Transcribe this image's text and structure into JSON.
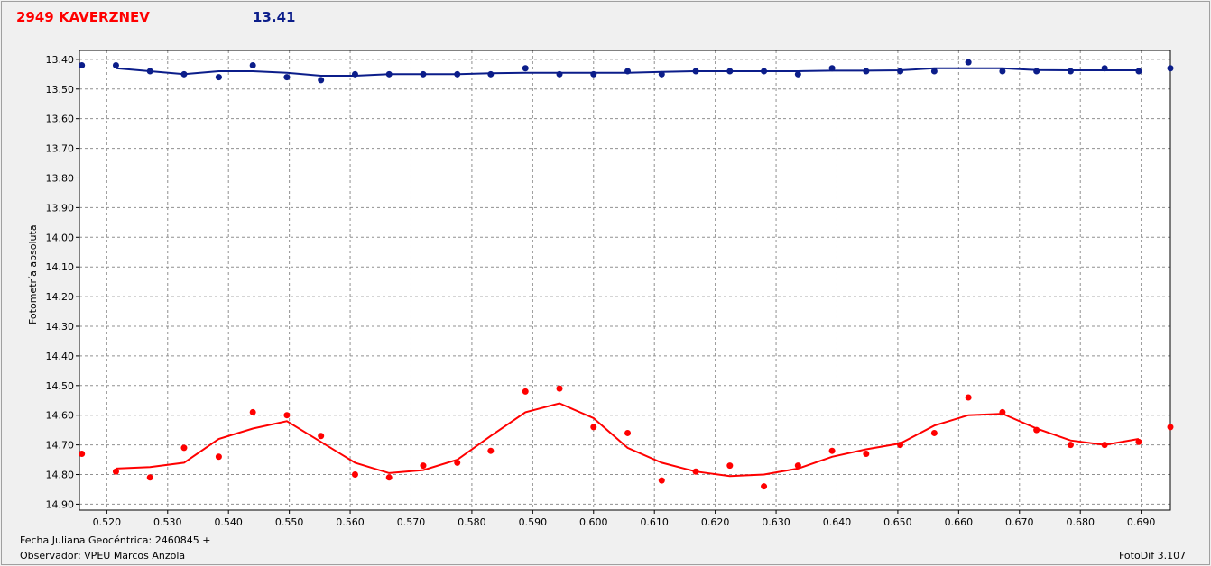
{
  "header": {
    "object_name": "2949 KAVERZNEV",
    "magnitude": "13.41"
  },
  "footer": {
    "fecha": "Fecha Juliana Geocéntrica: 2460845 +",
    "observer": "Observador: VPEU Marcos Anzola",
    "version": "FotoDif 3.107"
  },
  "colors": {
    "series_blue": "#0b1d8a",
    "series_red": "#ff0000",
    "title_red": "#ff0000",
    "title_blue": "#0b1d8a"
  },
  "chart_data": {
    "type": "scatter",
    "ylabel": "Fotometría absoluta",
    "xlabel": "Fecha Juliana Geocéntrica: 2460845 +",
    "xlim": [
      0.5155,
      0.6948
    ],
    "ylim": [
      13.37,
      14.92
    ],
    "y_inverted": true,
    "grid": true,
    "x_ticks": [
      "0.520",
      "0.530",
      "0.540",
      "0.550",
      "0.560",
      "0.570",
      "0.580",
      "0.590",
      "0.600",
      "0.610",
      "0.620",
      "0.630",
      "0.640",
      "0.650",
      "0.660",
      "0.670",
      "0.680",
      "0.690"
    ],
    "y_ticks": [
      "13.40",
      "13.50",
      "13.60",
      "13.70",
      "13.80",
      "13.90",
      "14.00",
      "14.10",
      "14.20",
      "14.30",
      "14.40",
      "14.50",
      "14.60",
      "14.70",
      "14.80",
      "14.90"
    ],
    "series": [
      {
        "color": "#0b1d8a",
        "points": [
          [
            0.5159,
            13.42
          ],
          [
            0.5215,
            13.42
          ],
          [
            0.5271,
            13.44
          ],
          [
            0.5327,
            13.45
          ],
          [
            0.5384,
            13.46
          ],
          [
            0.544,
            13.42
          ],
          [
            0.5496,
            13.46
          ],
          [
            0.5552,
            13.47
          ],
          [
            0.5608,
            13.45
          ],
          [
            0.5664,
            13.45
          ],
          [
            0.572,
            13.45
          ],
          [
            0.5776,
            13.45
          ],
          [
            0.5831,
            13.45
          ],
          [
            0.5888,
            13.43
          ],
          [
            0.5944,
            13.45
          ],
          [
            0.6,
            13.45
          ],
          [
            0.6056,
            13.44
          ],
          [
            0.6112,
            13.45
          ],
          [
            0.6168,
            13.44
          ],
          [
            0.6224,
            13.44
          ],
          [
            0.628,
            13.44
          ],
          [
            0.6336,
            13.45
          ],
          [
            0.6392,
            13.43
          ],
          [
            0.6448,
            13.44
          ],
          [
            0.6504,
            13.44
          ],
          [
            0.656,
            13.44
          ],
          [
            0.6616,
            13.41
          ],
          [
            0.6672,
            13.44
          ],
          [
            0.6728,
            13.44
          ],
          [
            0.6784,
            13.44
          ],
          [
            0.684,
            13.43
          ],
          [
            0.6896,
            13.44
          ],
          [
            0.6948,
            13.43
          ]
        ],
        "fit": [
          [
            0.5215,
            13.43
          ],
          [
            0.5271,
            13.44
          ],
          [
            0.5327,
            13.45
          ],
          [
            0.5384,
            13.44
          ],
          [
            0.544,
            13.44
          ],
          [
            0.5496,
            13.445
          ],
          [
            0.5552,
            13.455
          ],
          [
            0.5608,
            13.455
          ],
          [
            0.5664,
            13.45
          ],
          [
            0.572,
            13.45
          ],
          [
            0.5776,
            13.45
          ],
          [
            0.5831,
            13.447
          ],
          [
            0.5888,
            13.445
          ],
          [
            0.5944,
            13.445
          ],
          [
            0.6,
            13.445
          ],
          [
            0.6056,
            13.445
          ],
          [
            0.6112,
            13.442
          ],
          [
            0.6168,
            13.44
          ],
          [
            0.6224,
            13.44
          ],
          [
            0.628,
            13.44
          ],
          [
            0.6336,
            13.44
          ],
          [
            0.6392,
            13.438
          ],
          [
            0.6448,
            13.438
          ],
          [
            0.6504,
            13.437
          ],
          [
            0.656,
            13.43
          ],
          [
            0.6616,
            13.43
          ],
          [
            0.6672,
            13.43
          ],
          [
            0.6728,
            13.436
          ],
          [
            0.6784,
            13.437
          ],
          [
            0.684,
            13.437
          ],
          [
            0.6896,
            13.437
          ]
        ]
      },
      {
        "color": "#ff0000",
        "points": [
          [
            0.5159,
            14.73
          ],
          [
            0.5215,
            14.79
          ],
          [
            0.5271,
            14.81
          ],
          [
            0.5327,
            14.71
          ],
          [
            0.5384,
            14.74
          ],
          [
            0.544,
            14.59
          ],
          [
            0.5496,
            14.6
          ],
          [
            0.5552,
            14.67
          ],
          [
            0.5608,
            14.8
          ],
          [
            0.5664,
            14.81
          ],
          [
            0.572,
            14.77
          ],
          [
            0.5776,
            14.76
          ],
          [
            0.5831,
            14.72
          ],
          [
            0.5888,
            14.52
          ],
          [
            0.5944,
            14.51
          ],
          [
            0.6,
            14.64
          ],
          [
            0.6056,
            14.66
          ],
          [
            0.6112,
            14.82
          ],
          [
            0.6168,
            14.79
          ],
          [
            0.6224,
            14.77
          ],
          [
            0.628,
            14.84
          ],
          [
            0.6336,
            14.77
          ],
          [
            0.6392,
            14.72
          ],
          [
            0.6448,
            14.73
          ],
          [
            0.6504,
            14.7
          ],
          [
            0.656,
            14.66
          ],
          [
            0.6616,
            14.54
          ],
          [
            0.6672,
            14.59
          ],
          [
            0.6728,
            14.65
          ],
          [
            0.6784,
            14.7
          ],
          [
            0.684,
            14.7
          ],
          [
            0.6896,
            14.69
          ],
          [
            0.6948,
            14.64
          ]
        ],
        "fit": [
          [
            0.5215,
            14.78
          ],
          [
            0.5271,
            14.775
          ],
          [
            0.5327,
            14.76
          ],
          [
            0.5384,
            14.68
          ],
          [
            0.544,
            14.645
          ],
          [
            0.5496,
            14.62
          ],
          [
            0.5552,
            14.69
          ],
          [
            0.5608,
            14.76
          ],
          [
            0.5664,
            14.795
          ],
          [
            0.572,
            14.785
          ],
          [
            0.5776,
            14.75
          ],
          [
            0.5831,
            14.67
          ],
          [
            0.5888,
            14.59
          ],
          [
            0.5944,
            14.56
          ],
          [
            0.6,
            14.61
          ],
          [
            0.6056,
            14.71
          ],
          [
            0.6112,
            14.76
          ],
          [
            0.6168,
            14.79
          ],
          [
            0.6224,
            14.805
          ],
          [
            0.628,
            14.8
          ],
          [
            0.6336,
            14.78
          ],
          [
            0.6392,
            14.74
          ],
          [
            0.6448,
            14.715
          ],
          [
            0.6504,
            14.695
          ],
          [
            0.656,
            14.635
          ],
          [
            0.6616,
            14.6
          ],
          [
            0.6672,
            14.595
          ],
          [
            0.6728,
            14.645
          ],
          [
            0.6784,
            14.685
          ],
          [
            0.684,
            14.7
          ],
          [
            0.6896,
            14.68
          ]
        ]
      }
    ]
  }
}
